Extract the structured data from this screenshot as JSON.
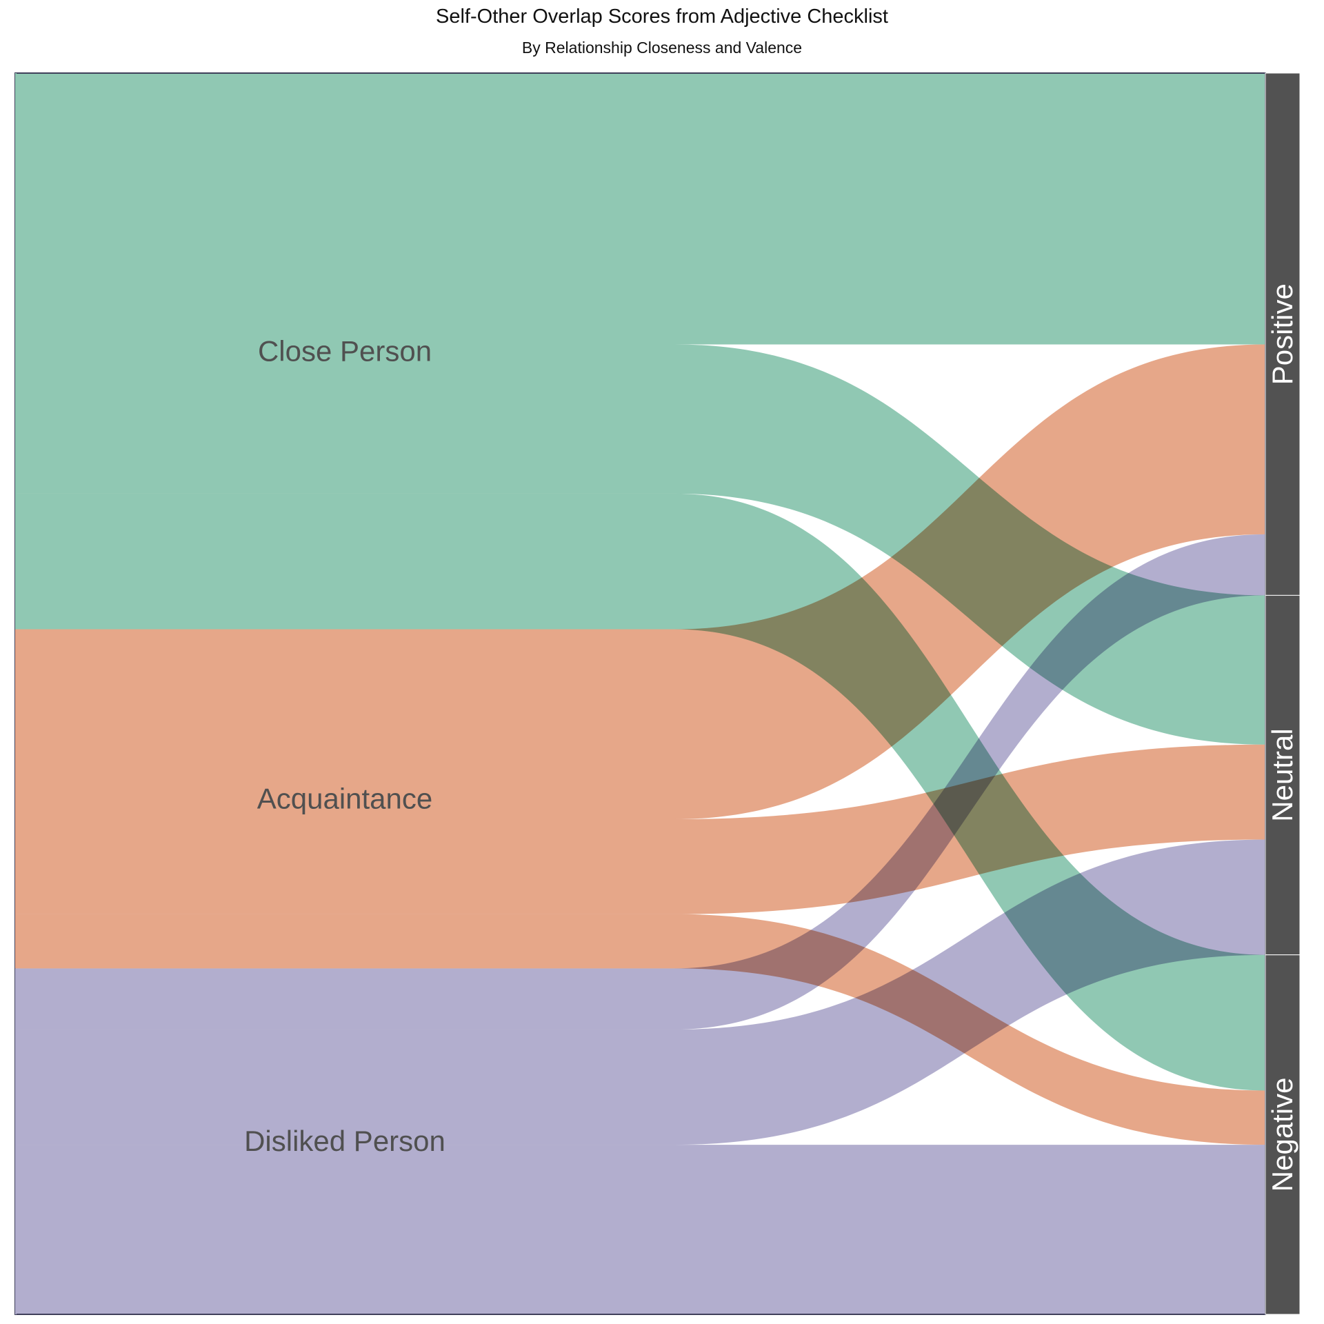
{
  "title": "Self-Other Overlap Scores from Adjective Checklist",
  "subtitle": "By Relationship Closeness and Valence",
  "chart_data": {
    "type": "sankey",
    "sources": [
      {
        "name": "Close Person",
        "color": "#8ec7b1"
      },
      {
        "name": "Acquaintance",
        "color": "#e6a587"
      },
      {
        "name": "Disliked Person",
        "color": "#b0accd"
      }
    ],
    "targets": [
      {
        "name": "Positive",
        "color": "#525252"
      },
      {
        "name": "Neutral",
        "color": "#525252"
      },
      {
        "name": "Negative",
        "color": "#525252"
      }
    ],
    "links": [
      {
        "source": "Close Person",
        "target": "Positive",
        "value": 40
      },
      {
        "source": "Close Person",
        "target": "Neutral",
        "value": 22
      },
      {
        "source": "Close Person",
        "target": "Negative",
        "value": 20
      },
      {
        "source": "Acquaintance",
        "target": "Positive",
        "value": 28
      },
      {
        "source": "Acquaintance",
        "target": "Neutral",
        "value": 14
      },
      {
        "source": "Acquaintance",
        "target": "Negative",
        "value": 8
      },
      {
        "source": "Disliked Person",
        "target": "Positive",
        "value": 9
      },
      {
        "source": "Disliked Person",
        "target": "Neutral",
        "value": 17
      },
      {
        "source": "Disliked Person",
        "target": "Negative",
        "value": 25
      }
    ]
  }
}
